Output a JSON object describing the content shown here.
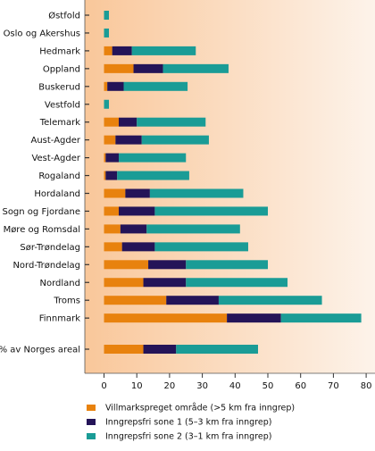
{
  "chart_data": {
    "type": "bar",
    "stacked": true,
    "orientation": "horizontal",
    "categories": [
      "Østfold",
      "Oslo og Akershus",
      "Hedmark",
      "Oppland",
      "Buskerud",
      "Vestfold",
      "Telemark",
      "Aust-Agder",
      "Vest-Agder",
      "Rogaland",
      "Hordaland",
      "Sogn og Fjordane",
      "Møre og Romsdal",
      "Sør-Trøndelag",
      "Nord-Trøndelag",
      "Nordland",
      "Troms",
      "Finnmark",
      "% av Norges areal"
    ],
    "series": [
      {
        "name": "Villmarkspreget område (>5 km fra inngrep)",
        "color": "#e8820e",
        "values": [
          0,
          0,
          2.5,
          9,
          1,
          0,
          4.5,
          3.5,
          0.5,
          0.5,
          6.5,
          4.5,
          5,
          5.5,
          13.5,
          12,
          19,
          37.5,
          12
        ]
      },
      {
        "name": "Inngrepsfri sone 1 (5–3 km fra inngrep)",
        "color": "#241458",
        "values": [
          0,
          0,
          6,
          9,
          5,
          0,
          5.5,
          8,
          4,
          3.5,
          7.5,
          11,
          8,
          10,
          11.5,
          13,
          16,
          16.5,
          10
        ]
      },
      {
        "name": "Inngrepsfri sone 2 (3–1 km fra inngrep)",
        "color": "#1a9c96",
        "values": [
          1.5,
          1.5,
          19.5,
          20,
          19.5,
          1.5,
          21,
          20.5,
          20.5,
          22,
          28.5,
          34.5,
          28.5,
          28.5,
          25,
          31,
          31.5,
          24.5,
          25
        ]
      }
    ],
    "xticks": [
      0,
      10,
      20,
      30,
      40,
      50,
      60,
      70,
      80
    ],
    "xlim": [
      -5.5,
      80
    ],
    "background_gradient": [
      "#f9c79a",
      "#fdf3ea"
    ],
    "legend_position": "bottom"
  }
}
